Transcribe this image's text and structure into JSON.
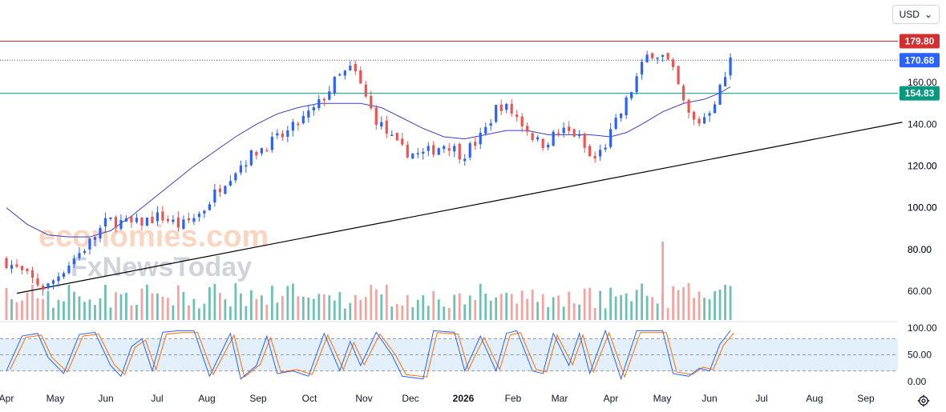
{
  "currency_selector": {
    "label": "USD",
    "caret": "⌄"
  },
  "settings_icon": "gear-icon",
  "colors": {
    "up": "#2962ff",
    "down": "#ef5350",
    "ma": "#3d3dc4",
    "resistance": "#d32f2f",
    "support": "#089981",
    "trendline": "#000000",
    "current_price": "#2962ff",
    "volume_up": "#6fc0b4",
    "volume_down": "#f4a3a0",
    "stoch_k": "#2962ff",
    "stoch_d": "#ff6d00",
    "stoch_band": "#e3f0fb"
  },
  "watermark": {
    "line1": "economies.com",
    "line2": "FxNewsToday"
  },
  "chart_data": {
    "type": "candlestick",
    "y_unit": "USD",
    "ylim": [
      50,
      190
    ],
    "y_ticks": [
      60,
      80,
      100,
      120,
      140,
      160
    ],
    "x_ticks": [
      "Apr",
      "May",
      "Jun",
      "Jul",
      "Aug",
      "Sep",
      "Oct",
      "Nov",
      "Dec",
      "2026",
      "Feb",
      "Mar",
      "Apr",
      "May",
      "Jun",
      "Jul",
      "Aug",
      "Sep"
    ],
    "price_path": [
      [
        0,
        75
      ],
      [
        8,
        61
      ],
      [
        12,
        72
      ],
      [
        16,
        82
      ],
      [
        20,
        94
      ],
      [
        25,
        92
      ],
      [
        30,
        96
      ],
      [
        34,
        91
      ],
      [
        38,
        98
      ],
      [
        42,
        112
      ],
      [
        46,
        122
      ],
      [
        49,
        128
      ],
      [
        54,
        135
      ],
      [
        60,
        148
      ],
      [
        64,
        162
      ],
      [
        67,
        167
      ],
      [
        71,
        144
      ],
      [
        76,
        128
      ],
      [
        80,
        125
      ],
      [
        85,
        131
      ],
      [
        88,
        125
      ],
      [
        92,
        135
      ],
      [
        95,
        150
      ],
      [
        98,
        145
      ],
      [
        103,
        130
      ],
      [
        107,
        137
      ],
      [
        110,
        135
      ],
      [
        113,
        122
      ],
      [
        115,
        128
      ],
      [
        119,
        148
      ],
      [
        122,
        165
      ],
      [
        124,
        175
      ],
      [
        127,
        172
      ],
      [
        129,
        162
      ],
      [
        131,
        146
      ],
      [
        133,
        140
      ],
      [
        135,
        145
      ],
      [
        137,
        154
      ],
      [
        139,
        166
      ],
      [
        139.5,
        170.68
      ]
    ],
    "ma_line": [
      [
        0,
        100
      ],
      [
        4,
        92
      ],
      [
        8,
        87
      ],
      [
        12,
        86
      ],
      [
        16,
        86
      ],
      [
        20,
        89
      ],
      [
        24,
        96
      ],
      [
        28,
        104
      ],
      [
        32,
        112
      ],
      [
        36,
        120
      ],
      [
        40,
        127
      ],
      [
        44,
        134
      ],
      [
        48,
        140
      ],
      [
        52,
        145
      ],
      [
        56,
        148
      ],
      [
        60,
        150
      ],
      [
        64,
        150
      ],
      [
        68,
        150
      ],
      [
        72,
        148
      ],
      [
        76,
        143
      ],
      [
        80,
        138
      ],
      [
        84,
        134
      ],
      [
        88,
        133
      ],
      [
        92,
        135
      ],
      [
        96,
        137
      ],
      [
        100,
        137
      ],
      [
        104,
        135
      ],
      [
        108,
        135
      ],
      [
        112,
        135
      ],
      [
        116,
        134
      ],
      [
        119,
        136
      ],
      [
        122,
        140
      ],
      [
        126,
        146
      ],
      [
        130,
        150
      ],
      [
        134,
        152
      ],
      [
        137,
        155
      ],
      [
        139,
        158
      ]
    ],
    "trendline": {
      "from": [
        2,
        59
      ],
      "to": [
        172,
        141
      ]
    },
    "horizontal_levels": [
      {
        "value": 179.8,
        "label": "179.80",
        "style": "solid",
        "color": "resistance"
      },
      {
        "value": 170.68,
        "label": "170.68",
        "style": "dotted",
        "color": "current_price"
      },
      {
        "value": 154.83,
        "label": "154.83",
        "style": "solid",
        "color": "support"
      }
    ],
    "volume_panel": {
      "range": "bars",
      "spike": 84
    },
    "stochastic": {
      "ylim": [
        0,
        100
      ],
      "y_ticks": [
        "100.00",
        "50.00",
        "0.00"
      ],
      "levels": [
        80,
        50,
        20
      ],
      "k_path": [
        [
          0,
          20
        ],
        [
          3,
          85
        ],
        [
          6,
          90
        ],
        [
          8,
          45
        ],
        [
          11,
          15
        ],
        [
          14,
          88
        ],
        [
          17,
          92
        ],
        [
          20,
          30
        ],
        [
          22,
          10
        ],
        [
          24,
          65
        ],
        [
          26,
          80
        ],
        [
          28,
          20
        ],
        [
          30,
          92
        ],
        [
          33,
          95
        ],
        [
          36,
          95
        ],
        [
          39,
          10
        ],
        [
          41,
          50
        ],
        [
          43,
          90
        ],
        [
          45,
          5
        ],
        [
          48,
          30
        ],
        [
          50,
          85
        ],
        [
          52,
          15
        ],
        [
          55,
          20
        ],
        [
          58,
          10
        ],
        [
          61,
          90
        ],
        [
          64,
          20
        ],
        [
          66,
          75
        ],
        [
          68,
          30
        ],
        [
          71,
          92
        ],
        [
          74,
          50
        ],
        [
          76,
          10
        ],
        [
          80,
          5
        ],
        [
          82,
          95
        ],
        [
          86,
          92
        ],
        [
          88,
          20
        ],
        [
          91,
          85
        ],
        [
          94,
          20
        ],
        [
          96,
          90
        ],
        [
          98,
          95
        ],
        [
          101,
          20
        ],
        [
          103,
          15
        ],
        [
          105,
          90
        ],
        [
          108,
          30
        ],
        [
          110,
          90
        ],
        [
          112,
          15
        ],
        [
          115,
          95
        ],
        [
          118,
          5
        ],
        [
          121,
          95
        ],
        [
          126,
          95
        ],
        [
          128,
          15
        ],
        [
          131,
          10
        ],
        [
          133,
          25
        ],
        [
          135,
          20
        ],
        [
          137,
          70
        ],
        [
          139,
          95
        ]
      ]
    }
  }
}
